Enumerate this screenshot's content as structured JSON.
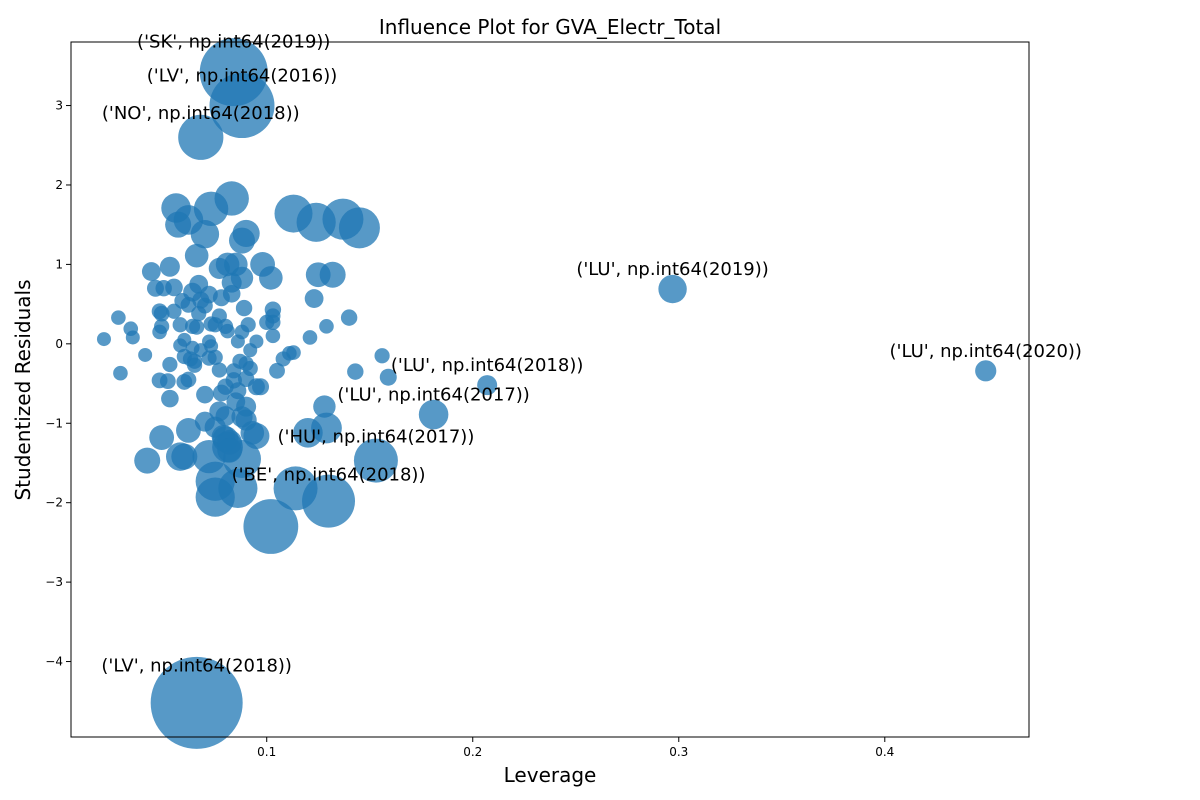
{
  "chart_data": {
    "type": "scatter",
    "title": "Influence Plot for GVA_Electr_Total",
    "xlabel": "Leverage",
    "ylabel": "Studentized Residuals",
    "xlim": [
      0.005,
      0.47
    ],
    "ylim": [
      -4.95,
      3.8
    ],
    "xticks": [
      0.1,
      0.2,
      0.3,
      0.4
    ],
    "xtick_labels": [
      "0.1",
      "0.2",
      "0.3",
      "0.4"
    ],
    "yticks": [
      -4,
      -3,
      -2,
      -1,
      0,
      1,
      2,
      3
    ],
    "ytick_labels": [
      "−4",
      "−3",
      "−2",
      "−1",
      "0",
      "1",
      "2",
      "3"
    ],
    "grid": false,
    "marker_color": "#1f77b4",
    "marker_alpha": 0.75,
    "size_encoding": "Cook's distance",
    "points": [
      {
        "x": 0.084,
        "y": 3.42,
        "s": 1.0
      },
      {
        "x": 0.088,
        "y": 3.0,
        "s": 0.95
      },
      {
        "x": 0.068,
        "y": 2.6,
        "s": 0.62
      },
      {
        "x": 0.066,
        "y": -4.52,
        "s": 1.4
      },
      {
        "x": 0.102,
        "y": -2.3,
        "s": 0.78
      },
      {
        "x": 0.13,
        "y": -1.98,
        "s": 0.75
      },
      {
        "x": 0.153,
        "y": -1.47,
        "s": 0.6
      },
      {
        "x": 0.114,
        "y": -1.82,
        "s": 0.6
      },
      {
        "x": 0.086,
        "y": -1.82,
        "s": 0.52
      },
      {
        "x": 0.075,
        "y": -1.93,
        "s": 0.52
      },
      {
        "x": 0.075,
        "y": -1.73,
        "s": 0.52
      },
      {
        "x": 0.088,
        "y": -1.45,
        "s": 0.5
      },
      {
        "x": 0.072,
        "y": -1.42,
        "s": 0.42
      },
      {
        "x": 0.081,
        "y": -1.3,
        "s": 0.38
      },
      {
        "x": 0.058,
        "y": -1.42,
        "s": 0.34
      },
      {
        "x": 0.06,
        "y": -1.42,
        "s": 0.3
      },
      {
        "x": 0.042,
        "y": -1.47,
        "s": 0.3
      },
      {
        "x": 0.049,
        "y": -1.18,
        "s": 0.28
      },
      {
        "x": 0.062,
        "y": -1.09,
        "s": 0.28
      },
      {
        "x": 0.08,
        "y": -1.2,
        "s": 0.3
      },
      {
        "x": 0.095,
        "y": -1.16,
        "s": 0.3
      },
      {
        "x": 0.12,
        "y": -1.12,
        "s": 0.36
      },
      {
        "x": 0.129,
        "y": -1.06,
        "s": 0.38
      },
      {
        "x": 0.181,
        "y": -0.89,
        "s": 0.36
      },
      {
        "x": 0.128,
        "y": -0.79,
        "s": 0.24
      },
      {
        "x": 0.207,
        "y": -0.52,
        "s": 0.2
      },
      {
        "x": 0.449,
        "y": -0.34,
        "s": 0.22
      },
      {
        "x": 0.297,
        "y": 0.69,
        "s": 0.34
      },
      {
        "x": 0.113,
        "y": 1.64,
        "s": 0.5
      },
      {
        "x": 0.124,
        "y": 1.53,
        "s": 0.52
      },
      {
        "x": 0.137,
        "y": 1.57,
        "s": 0.55
      },
      {
        "x": 0.145,
        "y": 1.46,
        "s": 0.55
      },
      {
        "x": 0.083,
        "y": 1.83,
        "s": 0.44
      },
      {
        "x": 0.073,
        "y": 1.7,
        "s": 0.44
      },
      {
        "x": 0.056,
        "y": 1.71,
        "s": 0.36
      },
      {
        "x": 0.062,
        "y": 1.56,
        "s": 0.36
      },
      {
        "x": 0.057,
        "y": 1.5,
        "s": 0.3
      },
      {
        "x": 0.07,
        "y": 1.38,
        "s": 0.34
      },
      {
        "x": 0.09,
        "y": 1.39,
        "s": 0.32
      },
      {
        "x": 0.088,
        "y": 1.3,
        "s": 0.3
      },
      {
        "x": 0.066,
        "y": 1.11,
        "s": 0.26
      },
      {
        "x": 0.085,
        "y": 1.0,
        "s": 0.26
      },
      {
        "x": 0.081,
        "y": 1.0,
        "s": 0.26
      },
      {
        "x": 0.098,
        "y": 1.0,
        "s": 0.28
      },
      {
        "x": 0.077,
        "y": 0.95,
        "s": 0.22
      },
      {
        "x": 0.102,
        "y": 0.83,
        "s": 0.26
      },
      {
        "x": 0.125,
        "y": 0.87,
        "s": 0.28
      },
      {
        "x": 0.132,
        "y": 0.87,
        "s": 0.3
      },
      {
        "x": 0.088,
        "y": 0.83,
        "s": 0.24
      },
      {
        "x": 0.053,
        "y": 0.97,
        "s": 0.2
      },
      {
        "x": 0.044,
        "y": 0.91,
        "s": 0.18
      },
      {
        "x": 0.067,
        "y": 0.75,
        "s": 0.18
      },
      {
        "x": 0.083,
        "y": 0.77,
        "s": 0.2
      },
      {
        "x": 0.064,
        "y": 0.65,
        "s": 0.18
      },
      {
        "x": 0.055,
        "y": 0.71,
        "s": 0.16
      },
      {
        "x": 0.046,
        "y": 0.7,
        "s": 0.15
      },
      {
        "x": 0.05,
        "y": 0.7,
        "s": 0.14
      },
      {
        "x": 0.072,
        "y": 0.62,
        "s": 0.16
      },
      {
        "x": 0.078,
        "y": 0.58,
        "s": 0.15
      },
      {
        "x": 0.083,
        "y": 0.63,
        "s": 0.16
      },
      {
        "x": 0.068,
        "y": 0.55,
        "s": 0.15
      },
      {
        "x": 0.059,
        "y": 0.54,
        "s": 0.13
      },
      {
        "x": 0.062,
        "y": 0.49,
        "s": 0.13
      },
      {
        "x": 0.07,
        "y": 0.48,
        "s": 0.13
      },
      {
        "x": 0.089,
        "y": 0.45,
        "s": 0.14
      },
      {
        "x": 0.103,
        "y": 0.43,
        "s": 0.14
      },
      {
        "x": 0.123,
        "y": 0.57,
        "s": 0.18
      },
      {
        "x": 0.048,
        "y": 0.41,
        "s": 0.13
      },
      {
        "x": 0.049,
        "y": 0.38,
        "s": 0.13
      },
      {
        "x": 0.055,
        "y": 0.41,
        "s": 0.12
      },
      {
        "x": 0.067,
        "y": 0.38,
        "s": 0.12
      },
      {
        "x": 0.077,
        "y": 0.35,
        "s": 0.12
      },
      {
        "x": 0.103,
        "y": 0.35,
        "s": 0.12
      },
      {
        "x": 0.14,
        "y": 0.33,
        "s": 0.14
      },
      {
        "x": 0.028,
        "y": 0.33,
        "s": 0.11
      },
      {
        "x": 0.058,
        "y": 0.24,
        "s": 0.12
      },
      {
        "x": 0.049,
        "y": 0.22,
        "s": 0.12
      },
      {
        "x": 0.064,
        "y": 0.22,
        "s": 0.12
      },
      {
        "x": 0.066,
        "y": 0.21,
        "s": 0.12
      },
      {
        "x": 0.073,
        "y": 0.25,
        "s": 0.12
      },
      {
        "x": 0.075,
        "y": 0.24,
        "s": 0.12
      },
      {
        "x": 0.08,
        "y": 0.22,
        "s": 0.12
      },
      {
        "x": 0.091,
        "y": 0.24,
        "s": 0.12
      },
      {
        "x": 0.1,
        "y": 0.27,
        "s": 0.12
      },
      {
        "x": 0.103,
        "y": 0.27,
        "s": 0.12
      },
      {
        "x": 0.129,
        "y": 0.22,
        "s": 0.11
      },
      {
        "x": 0.034,
        "y": 0.19,
        "s": 0.11
      },
      {
        "x": 0.048,
        "y": 0.15,
        "s": 0.11
      },
      {
        "x": 0.081,
        "y": 0.16,
        "s": 0.11
      },
      {
        "x": 0.088,
        "y": 0.15,
        "s": 0.11
      },
      {
        "x": 0.103,
        "y": 0.1,
        "s": 0.11
      },
      {
        "x": 0.121,
        "y": 0.08,
        "s": 0.11
      },
      {
        "x": 0.035,
        "y": 0.08,
        "s": 0.1
      },
      {
        "x": 0.021,
        "y": 0.06,
        "s": 0.1
      },
      {
        "x": 0.06,
        "y": 0.05,
        "s": 0.1
      },
      {
        "x": 0.072,
        "y": 0.03,
        "s": 0.1
      },
      {
        "x": 0.086,
        "y": 0.03,
        "s": 0.1
      },
      {
        "x": 0.095,
        "y": 0.03,
        "s": 0.1
      },
      {
        "x": 0.058,
        "y": -0.02,
        "s": 0.1
      },
      {
        "x": 0.064,
        "y": -0.05,
        "s": 0.1
      },
      {
        "x": 0.068,
        "y": -0.08,
        "s": 0.1
      },
      {
        "x": 0.073,
        "y": -0.03,
        "s": 0.1
      },
      {
        "x": 0.092,
        "y": -0.08,
        "s": 0.1
      },
      {
        "x": 0.111,
        "y": -0.12,
        "s": 0.11
      },
      {
        "x": 0.113,
        "y": -0.11,
        "s": 0.11
      },
      {
        "x": 0.108,
        "y": -0.19,
        "s": 0.12
      },
      {
        "x": 0.041,
        "y": -0.14,
        "s": 0.1
      },
      {
        "x": 0.06,
        "y": -0.16,
        "s": 0.12
      },
      {
        "x": 0.063,
        "y": -0.19,
        "s": 0.12
      },
      {
        "x": 0.065,
        "y": -0.22,
        "s": 0.12
      },
      {
        "x": 0.072,
        "y": -0.18,
        "s": 0.12
      },
      {
        "x": 0.075,
        "y": -0.17,
        "s": 0.12
      },
      {
        "x": 0.087,
        "y": -0.22,
        "s": 0.12
      },
      {
        "x": 0.09,
        "y": -0.25,
        "s": 0.12
      },
      {
        "x": 0.053,
        "y": -0.26,
        "s": 0.12
      },
      {
        "x": 0.065,
        "y": -0.27,
        "s": 0.12
      },
      {
        "x": 0.077,
        "y": -0.33,
        "s": 0.12
      },
      {
        "x": 0.084,
        "y": -0.34,
        "s": 0.12
      },
      {
        "x": 0.092,
        "y": -0.31,
        "s": 0.12
      },
      {
        "x": 0.105,
        "y": -0.34,
        "s": 0.13
      },
      {
        "x": 0.156,
        "y": -0.15,
        "s": 0.12
      },
      {
        "x": 0.143,
        "y": -0.35,
        "s": 0.14
      },
      {
        "x": 0.159,
        "y": -0.42,
        "s": 0.15
      },
      {
        "x": 0.029,
        "y": -0.37,
        "s": 0.11
      },
      {
        "x": 0.048,
        "y": -0.46,
        "s": 0.13
      },
      {
        "x": 0.052,
        "y": -0.47,
        "s": 0.13
      },
      {
        "x": 0.06,
        "y": -0.48,
        "s": 0.13
      },
      {
        "x": 0.062,
        "y": -0.45,
        "s": 0.13
      },
      {
        "x": 0.084,
        "y": -0.46,
        "s": 0.14
      },
      {
        "x": 0.09,
        "y": -0.44,
        "s": 0.14
      },
      {
        "x": 0.095,
        "y": -0.54,
        "s": 0.15
      },
      {
        "x": 0.097,
        "y": -0.54,
        "s": 0.15
      },
      {
        "x": 0.08,
        "y": -0.54,
        "s": 0.14
      },
      {
        "x": 0.078,
        "y": -0.62,
        "s": 0.15
      },
      {
        "x": 0.086,
        "y": -0.59,
        "s": 0.15
      },
      {
        "x": 0.07,
        "y": -0.64,
        "s": 0.16
      },
      {
        "x": 0.053,
        "y": -0.69,
        "s": 0.16
      },
      {
        "x": 0.085,
        "y": -0.73,
        "s": 0.18
      },
      {
        "x": 0.09,
        "y": -0.79,
        "s": 0.2
      },
      {
        "x": 0.077,
        "y": -0.85,
        "s": 0.2
      },
      {
        "x": 0.08,
        "y": -0.91,
        "s": 0.2
      },
      {
        "x": 0.088,
        "y": -0.92,
        "s": 0.22
      },
      {
        "x": 0.09,
        "y": -0.96,
        "s": 0.22
      },
      {
        "x": 0.07,
        "y": -0.98,
        "s": 0.2
      },
      {
        "x": 0.075,
        "y": -1.05,
        "s": 0.22
      },
      {
        "x": 0.093,
        "y": -1.12,
        "s": 0.26
      },
      {
        "x": 0.079,
        "y": -1.17,
        "s": 0.26
      },
      {
        "x": 0.082,
        "y": -1.24,
        "s": 0.28
      },
      {
        "x": 0.082,
        "y": -1.34,
        "s": 0.28
      }
    ],
    "annotations": [
      {
        "text": "('SK', np.int64(2019))",
        "x": 0.084,
        "y": 3.42
      },
      {
        "text": "('LV', np.int64(2016))",
        "x": 0.088,
        "y": 3.0
      },
      {
        "text": "('NO', np.int64(2018))",
        "x": 0.068,
        "y": 2.6
      },
      {
        "text": "('LU', np.int64(2019))",
        "x": 0.297,
        "y": 0.69
      },
      {
        "text": "('LU', np.int64(2020))",
        "x": 0.449,
        "y": -0.34
      },
      {
        "text": "('LU', np.int64(2018))",
        "x": 0.207,
        "y": -0.52
      },
      {
        "text": "('LU', np.int64(2017))",
        "x": 0.181,
        "y": -0.89
      },
      {
        "text": "('HU', np.int64(2017))",
        "x": 0.153,
        "y": -1.47
      },
      {
        "text": "('BE', np.int64(2018))",
        "x": 0.13,
        "y": -1.98
      },
      {
        "text": "('LV', np.int64(2018))",
        "x": 0.066,
        "y": -4.52
      }
    ]
  }
}
